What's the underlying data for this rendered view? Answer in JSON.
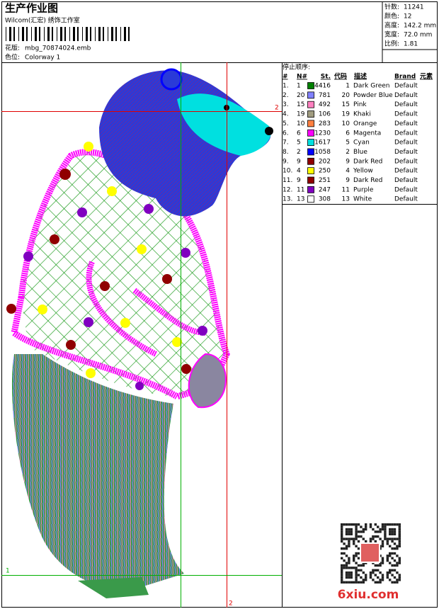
{
  "header": {
    "title": "生产作业图",
    "studio": "Wilcom(汇宏) 绣饰工作室",
    "design_label": "花版:",
    "design_file": "mbg_70874024.emb",
    "colorway_label": "色位:",
    "colorway": "Colorway 1"
  },
  "info": [
    {
      "label": "针数:",
      "value": "11241"
    },
    {
      "label": "颜色:",
      "value": "12"
    },
    {
      "label": "高度:",
      "value": "142.2 mm"
    },
    {
      "label": "宽度:",
      "value": "72.0 mm"
    },
    {
      "label": "比例:",
      "value": "1.81"
    }
  ],
  "sequence": {
    "title": "停止顺序:",
    "columns": [
      "#",
      "N#",
      "St.",
      "代码",
      "描述",
      "Brand",
      "元素"
    ],
    "rows": [
      {
        "index": "1.",
        "needle": "1",
        "color": "#008000",
        "stitches": "4416",
        "code": "1",
        "description": "Dark Green",
        "brand": "Default"
      },
      {
        "index": "2.",
        "needle": "20",
        "color": "#8080ff",
        "stitches": "781",
        "code": "20",
        "description": "Powder Blue",
        "brand": "Default"
      },
      {
        "index": "3.",
        "needle": "15",
        "color": "#ff80c0",
        "stitches": "492",
        "code": "15",
        "description": "Pink",
        "brand": "Default"
      },
      {
        "index": "4.",
        "needle": "19",
        "color": "#a09c80",
        "stitches": "106",
        "code": "19",
        "description": "Khaki",
        "brand": "Default"
      },
      {
        "index": "5.",
        "needle": "10",
        "color": "#ff8040",
        "stitches": "283",
        "code": "10",
        "description": "Orange",
        "brand": "Default"
      },
      {
        "index": "6.",
        "needle": "6",
        "color": "#ff00ff",
        "stitches": "1230",
        "code": "6",
        "description": "Magenta",
        "brand": "Default"
      },
      {
        "index": "7.",
        "needle": "5",
        "color": "#00e0e0",
        "stitches": "1617",
        "code": "5",
        "description": "Cyan",
        "brand": "Default"
      },
      {
        "index": "8.",
        "needle": "2",
        "color": "#0000ff",
        "stitches": "1058",
        "code": "2",
        "description": "Blue",
        "brand": "Default"
      },
      {
        "index": "9.",
        "needle": "9",
        "color": "#900000",
        "stitches": "202",
        "code": "9",
        "description": "Dark Red",
        "brand": "Default"
      },
      {
        "index": "10.",
        "needle": "4",
        "color": "#ffff00",
        "stitches": "250",
        "code": "4",
        "description": "Yellow",
        "brand": "Default"
      },
      {
        "index": "11.",
        "needle": "9",
        "color": "#900000",
        "stitches": "251",
        "code": "9",
        "description": "Dark Red",
        "brand": "Default"
      },
      {
        "index": "12.",
        "needle": "11",
        "color": "#8000c0",
        "stitches": "247",
        "code": "11",
        "description": "Purple",
        "brand": "Default"
      },
      {
        "index": "13.",
        "needle": "13",
        "color": "#ffffff",
        "stitches": "308",
        "code": "13",
        "description": "White",
        "brand": "Default"
      }
    ]
  },
  "guides": {
    "top_right": "2",
    "bottom": "2",
    "left": "1"
  },
  "watermark": "6xiu.com"
}
